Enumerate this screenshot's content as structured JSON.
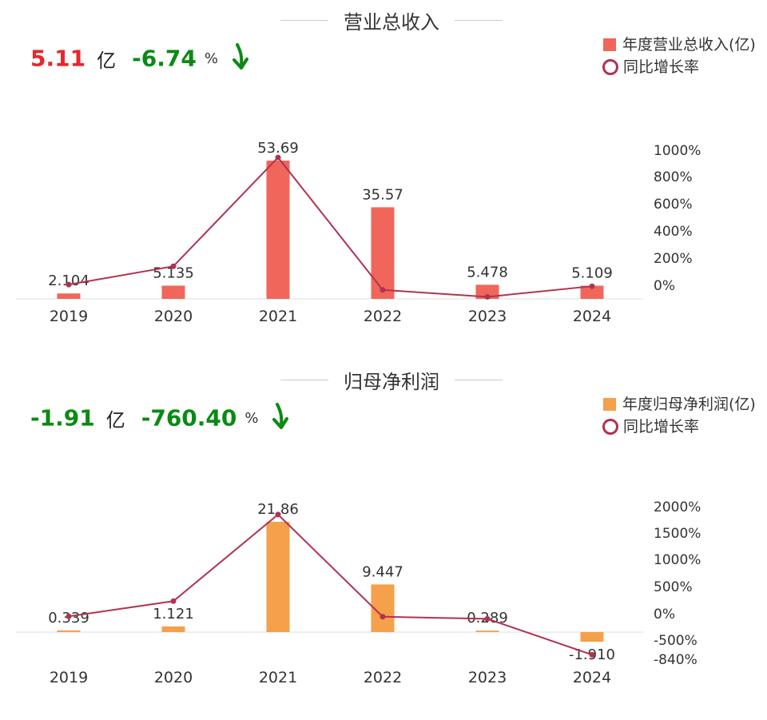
{
  "colors": {
    "revenue_bar": "#f0665a",
    "profit_bar": "#f5a04a",
    "growth_line": "#b03350",
    "positive": "#e8262a",
    "negative": "#0a8a14"
  },
  "revenue": {
    "title": "营业总收入",
    "summary_value": "5.11",
    "summary_unit": "亿",
    "summary_change": "-6.74",
    "summary_pct_sign": "%",
    "legend_bar": "年度营业总收入(亿)",
    "legend_line": "同比增长率"
  },
  "profit": {
    "title": "归母净利润",
    "summary_value": "-1.91",
    "summary_unit": "亿",
    "summary_change": "-760.40",
    "summary_pct_sign": "%",
    "legend_bar": "年度归母净利润(亿)",
    "legend_line": "同比增长率"
  },
  "chart_data": [
    {
      "type": "bar",
      "title": "营业总收入",
      "categories": [
        "2019",
        "2020",
        "2021",
        "2022",
        "2023",
        "2024"
      ],
      "series": [
        {
          "name": "年度营业总收入(亿)",
          "type": "bar",
          "values": [
            2.104,
            5.135,
            53.69,
            35.57,
            5.478,
            5.109
          ],
          "labels": [
            "2.104",
            "5.135",
            "53.69",
            "35.57",
            "5.478",
            "5.109"
          ]
        },
        {
          "name": "同比增长率",
          "type": "line",
          "axis": "right",
          "values": [
            5,
            140,
            945,
            -34,
            -85,
            -7
          ]
        }
      ],
      "y2_ticks": [
        "1000%",
        "800%",
        "600%",
        "400%",
        "200%",
        "0%"
      ],
      "y2_tick_values": [
        1000,
        800,
        600,
        400,
        200,
        0
      ],
      "legend_position": "top-right"
    },
    {
      "type": "bar",
      "title": "归母净利润",
      "categories": [
        "2019",
        "2020",
        "2021",
        "2022",
        "2023",
        "2024"
      ],
      "series": [
        {
          "name": "年度归母净利润(亿)",
          "type": "bar",
          "values": [
            0.339,
            1.121,
            21.86,
            9.447,
            0.289,
            -1.91
          ],
          "labels": [
            "0.339",
            "1.121",
            "21.86",
            "9.447",
            "0.289",
            "-1.910"
          ]
        },
        {
          "name": "同比增长率",
          "type": "line",
          "axis": "right",
          "values": [
            -50,
            231,
            1850,
            -57,
            -97,
            -760
          ]
        }
      ],
      "y2_ticks": [
        "2000%",
        "1500%",
        "1000%",
        "500%",
        "0%",
        "-500%",
        "-840%"
      ],
      "y2_tick_values": [
        2000,
        1500,
        1000,
        500,
        0,
        -500,
        -840
      ],
      "legend_position": "top-right"
    }
  ]
}
